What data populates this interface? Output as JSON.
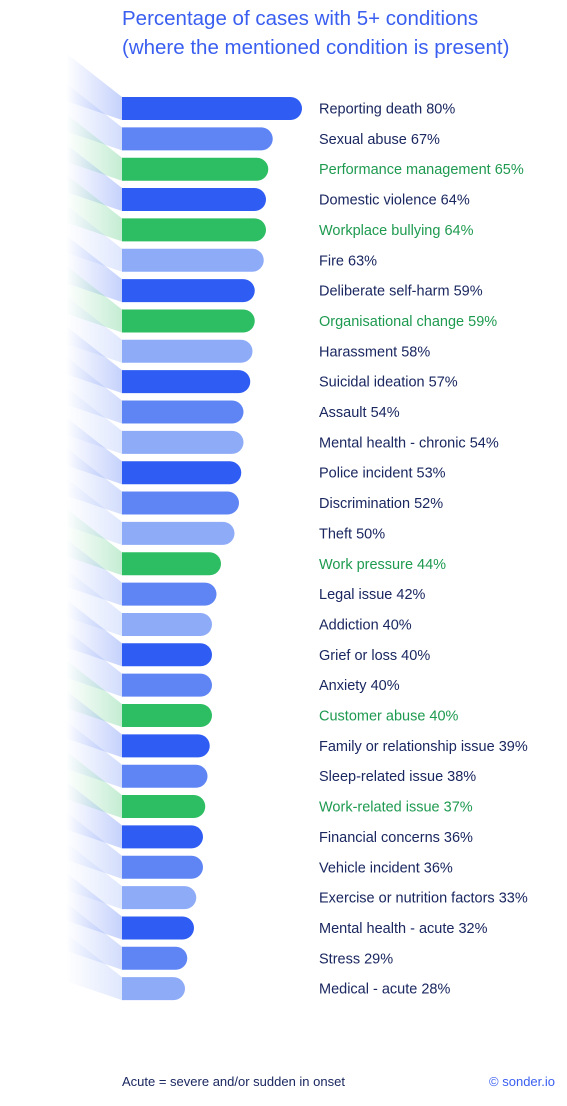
{
  "chart_data": {
    "type": "bar",
    "orientation": "horizontal",
    "title_lines": [
      "Percentage of cases with 5+ conditions",
      "(where the mentioned condition is present)"
    ],
    "value_suffix": "%",
    "categories": [
      "Reporting death",
      "Sexual abuse",
      "Performance management",
      "Domestic violence",
      "Workplace bullying",
      "Fire",
      "Deliberate self-harm",
      "Organisational change",
      "Harassment",
      "Suicidal ideation",
      "Assault",
      "Mental health - chronic",
      "Police incident",
      "Discrimination",
      "Theft",
      "Work pressure",
      "Legal issue",
      "Addiction",
      "Grief or loss",
      "Anxiety",
      "Customer abuse",
      "Family or relationship issue",
      "Sleep-related issue",
      "Work-related issue",
      "Financial concerns",
      "Vehicle incident",
      "Exercise or nutrition factors",
      "Mental health - acute",
      "Stress",
      "Medical - acute"
    ],
    "values": [
      80,
      67,
      65,
      64,
      64,
      63,
      59,
      59,
      58,
      57,
      54,
      54,
      53,
      52,
      50,
      44,
      42,
      40,
      40,
      40,
      40,
      39,
      38,
      37,
      36,
      36,
      33,
      32,
      29,
      28
    ],
    "bar_colors": [
      "#2f5cf2",
      "#5f85f5",
      "#2dbd62",
      "#2f5cf2",
      "#2dbd62",
      "#8eabf8",
      "#2f5cf2",
      "#2dbd62",
      "#8eabf8",
      "#2f5cf2",
      "#5f85f5",
      "#8eabf8",
      "#2f5cf2",
      "#5f85f5",
      "#8eabf8",
      "#2dbd62",
      "#5f85f5",
      "#8eabf8",
      "#2f5cf2",
      "#5f85f5",
      "#2dbd62",
      "#2f5cf2",
      "#5f85f5",
      "#2dbd62",
      "#2f5cf2",
      "#5f85f5",
      "#8eabf8",
      "#2f5cf2",
      "#5f85f5",
      "#8eabf8"
    ],
    "label_colors": [
      "#1a2760",
      "#1a2760",
      "#1e9a50",
      "#1a2760",
      "#1e9a50",
      "#1a2760",
      "#1a2760",
      "#1e9a50",
      "#1a2760",
      "#1a2760",
      "#1a2760",
      "#1a2760",
      "#1a2760",
      "#1a2760",
      "#1a2760",
      "#1e9a50",
      "#1a2760",
      "#1a2760",
      "#1a2760",
      "#1a2760",
      "#1e9a50",
      "#1a2760",
      "#1a2760",
      "#1e9a50",
      "#1a2760",
      "#1a2760",
      "#1a2760",
      "#1a2760",
      "#1a2760",
      "#1a2760"
    ],
    "grid": false,
    "legend": "none"
  },
  "footnote": "Acute = severe and/or sudden in onset",
  "credit": "© sonder.io"
}
